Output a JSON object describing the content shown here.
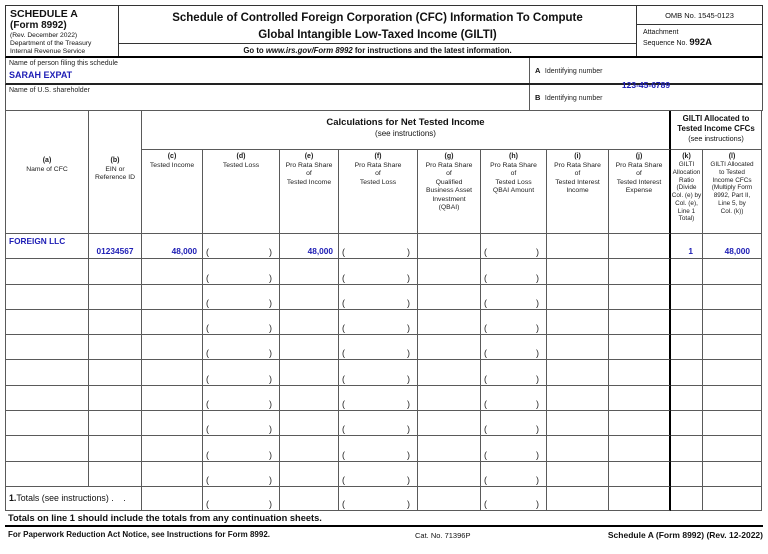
{
  "header": {
    "schedule_label": "SCHEDULE A",
    "form_label": "(Form 8992)",
    "revision": "(Rev. December 2022)",
    "agency_line1": "Department of the Treasury",
    "agency_line2": "Internal Revenue Service",
    "title_line1": "Schedule of Controlled Foreign Corporation (CFC) Information To Compute",
    "title_line2": "Global Intangible Low-Taxed Income (GILTI)",
    "goto_prefix": "Go to ",
    "goto_url": "www.irs.gov/Form 8992",
    "goto_suffix": " for instructions and the latest information.",
    "omb": "OMB No. 1545-0123",
    "attachment_line1": "Attachment",
    "attachment_line2": "Sequence No. ",
    "sequence_no": "992A"
  },
  "filer": {
    "name_label": "Name of person filing this schedule",
    "name_value": "SARAH EXPAT",
    "id_a_letter": "A",
    "id_a_label": "Identifying number",
    "id_a_value": "123-45-6789",
    "shareholder_label": "Name of U.S. shareholder",
    "shareholder_value": "",
    "id_b_letter": "B",
    "id_b_label": "Identifying number",
    "id_b_value": ""
  },
  "table": {
    "group_net_tested": {
      "title": "Calculations for Net Tested Income",
      "subtitle": "(see instructions)"
    },
    "group_gilti": {
      "title_line1": "GILTI Allocated to",
      "title_line2": "Tested Income CFCs",
      "subtitle": "(see instructions)"
    },
    "paren_columns": [
      "d",
      "f",
      "h"
    ],
    "columns": [
      {
        "id": "a",
        "tag": "(a)",
        "label": "Name of CFC"
      },
      {
        "id": "b",
        "tag": "(b)",
        "label": "EIN or\nReference ID"
      },
      {
        "id": "c",
        "tag": "(c)",
        "label": "Tested Income"
      },
      {
        "id": "d",
        "tag": "(d)",
        "label": "Tested Loss"
      },
      {
        "id": "e",
        "tag": "(e)",
        "label": "Pro Rata Share\nof\nTested Income"
      },
      {
        "id": "f",
        "tag": "(f)",
        "label": "Pro Rata Share\nof\nTested Loss"
      },
      {
        "id": "g",
        "tag": "(g)",
        "label": "Pro Rata Share\nof\nQualified\nBusiness Asset\nInvestment\n(QBAI)"
      },
      {
        "id": "h",
        "tag": "(h)",
        "label": "Pro Rata Share\nof\nTested Loss\nQBAI Amount"
      },
      {
        "id": "i",
        "tag": "(i)",
        "label": "Pro Rata Share\nof\nTested Interest\nIncome"
      },
      {
        "id": "j",
        "tag": "(j)",
        "label": "Pro Rata Share\nof\nTested Interest\nExpense"
      },
      {
        "id": "k",
        "tag": "(k)",
        "label": "GILTI\nAllocation\nRatio\n(Divide\nCol. (e) by\nCol. (e),\nLine 1\nTotal)"
      },
      {
        "id": "l",
        "tag": "(l)",
        "label": "GILTI Allocated\nto Tested\nIncome CFCs\n(Multiply Form\n8992, Part II,\nLine 5, by\nCol. (k))"
      }
    ],
    "rows": [
      {
        "a": "FOREIGN LLC",
        "b": "01234567",
        "c": "48,000",
        "d": "",
        "e": "48,000",
        "f": "",
        "g": "",
        "h": "",
        "i": "",
        "j": "",
        "k": "1",
        "l": "48,000"
      },
      {
        "a": "",
        "b": "",
        "c": "",
        "d": "",
        "e": "",
        "f": "",
        "g": "",
        "h": "",
        "i": "",
        "j": "",
        "k": "",
        "l": ""
      },
      {
        "a": "",
        "b": "",
        "c": "",
        "d": "",
        "e": "",
        "f": "",
        "g": "",
        "h": "",
        "i": "",
        "j": "",
        "k": "",
        "l": ""
      },
      {
        "a": "",
        "b": "",
        "c": "",
        "d": "",
        "e": "",
        "f": "",
        "g": "",
        "h": "",
        "i": "",
        "j": "",
        "k": "",
        "l": ""
      },
      {
        "a": "",
        "b": "",
        "c": "",
        "d": "",
        "e": "",
        "f": "",
        "g": "",
        "h": "",
        "i": "",
        "j": "",
        "k": "",
        "l": ""
      },
      {
        "a": "",
        "b": "",
        "c": "",
        "d": "",
        "e": "",
        "f": "",
        "g": "",
        "h": "",
        "i": "",
        "j": "",
        "k": "",
        "l": ""
      },
      {
        "a": "",
        "b": "",
        "c": "",
        "d": "",
        "e": "",
        "f": "",
        "g": "",
        "h": "",
        "i": "",
        "j": "",
        "k": "",
        "l": ""
      },
      {
        "a": "",
        "b": "",
        "c": "",
        "d": "",
        "e": "",
        "f": "",
        "g": "",
        "h": "",
        "i": "",
        "j": "",
        "k": "",
        "l": ""
      },
      {
        "a": "",
        "b": "",
        "c": "",
        "d": "",
        "e": "",
        "f": "",
        "g": "",
        "h": "",
        "i": "",
        "j": "",
        "k": "",
        "l": ""
      },
      {
        "a": "",
        "b": "",
        "c": "",
        "d": "",
        "e": "",
        "f": "",
        "g": "",
        "h": "",
        "i": "",
        "j": "",
        "k": "",
        "l": ""
      }
    ],
    "totals_row": {
      "number": "1.",
      "label": " Totals (see instructions)",
      "dots": " .    .",
      "values": {
        "c": "",
        "d": "",
        "e": "",
        "f": "",
        "g": "",
        "h": "",
        "i": "",
        "j": "",
        "k": "",
        "l": ""
      }
    }
  },
  "footer": {
    "continuation_note": "Totals on line 1 should include the totals from any continuation sheets.",
    "paperwork_notice": "For Paperwork Reduction Act Notice, see Instructions for Form 8992.",
    "cat_no": "Cat. No. 71396P",
    "form_footer": "Schedule A (Form 8992) (Rev. 12-2022)"
  }
}
